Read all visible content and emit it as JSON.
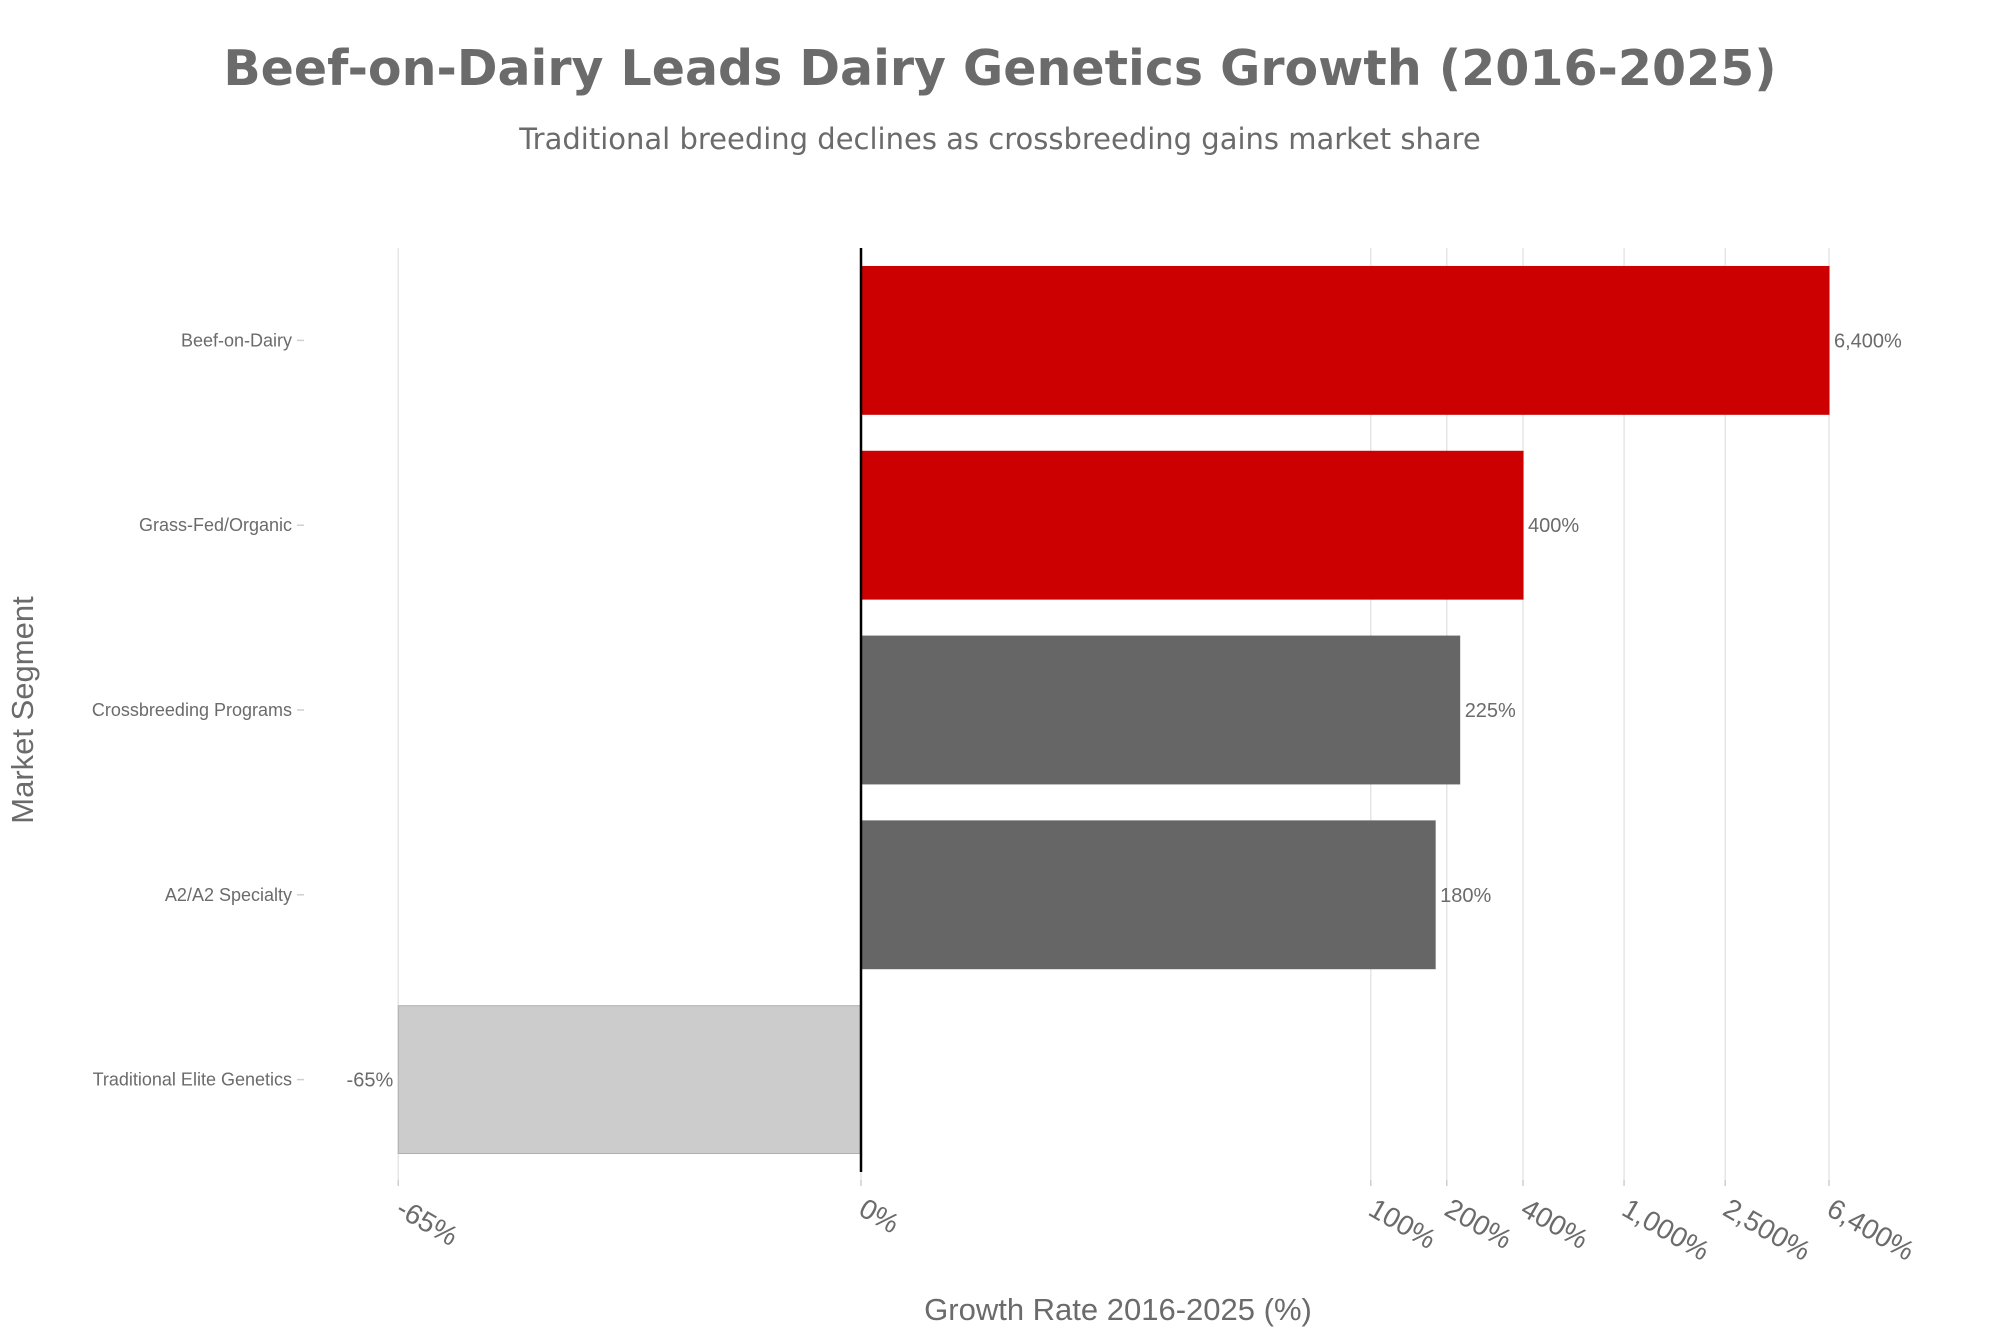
{
  "chart_data": {
    "type": "bar",
    "orientation": "horizontal",
    "title": "Beef-on-Dairy Leads Dairy Genetics Growth (2016-2025)",
    "subtitle": "Traditional breeding declines as crossbreeding gains market share",
    "xlabel": "Growth Rate 2016-2025 (%)",
    "ylabel": "Market Segment",
    "xscale": "symlog",
    "categories": [
      "Beef-on-Dairy",
      "Grass-Fed/Organic",
      "Crossbreeding Programs",
      "A2/A2 Specialty",
      "Traditional Elite Genetics"
    ],
    "values": [
      6400,
      400,
      225,
      180,
      -65
    ],
    "value_labels": [
      "6,400%",
      "400%",
      "225%",
      "180%",
      "-65%"
    ],
    "bar_colors": [
      "#cc0000",
      "#cc0000",
      "#666666",
      "#666666",
      "#cccccc"
    ],
    "x_ticks": [
      -65,
      0,
      100,
      200,
      400,
      1000,
      2500,
      6400
    ],
    "x_tick_labels": [
      "-65%",
      "0%",
      "100%",
      "200%",
      "400%",
      "1,000%",
      "2,500%",
      "6,400%"
    ],
    "grid": true,
    "colors": {
      "highlight": "#cc0000",
      "neutral": "#666666",
      "decline": "#cccccc",
      "text": "#6b6b6b"
    }
  }
}
